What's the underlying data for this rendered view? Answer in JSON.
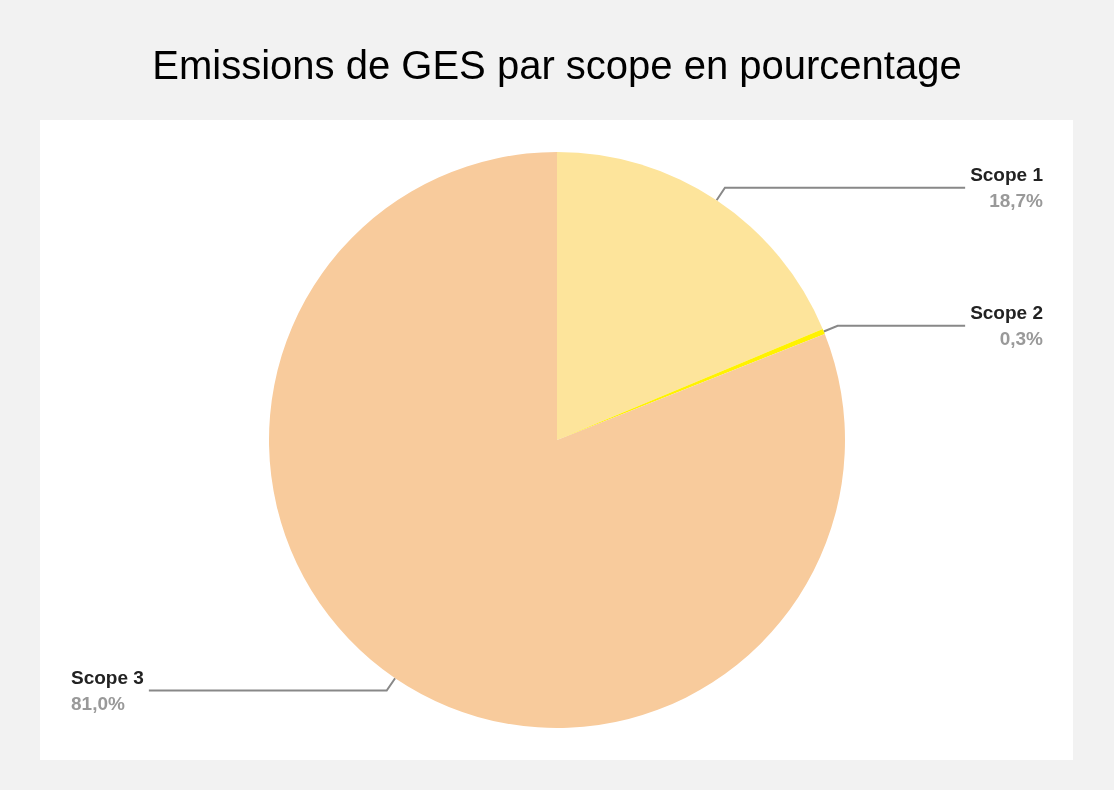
{
  "chart_data": {
    "type": "pie",
    "title": "Emissions de GES par scope en pourcentage",
    "categories": [
      "Scope 1",
      "Scope 2",
      "Scope 3"
    ],
    "values": [
      18.7,
      0.3,
      81.0
    ],
    "colors": [
      "#fde49b",
      "#fff200",
      "#f8cb9c"
    ],
    "value_labels": [
      "18,7%",
      "0,3%",
      "81,0%"
    ],
    "legend": false
  }
}
